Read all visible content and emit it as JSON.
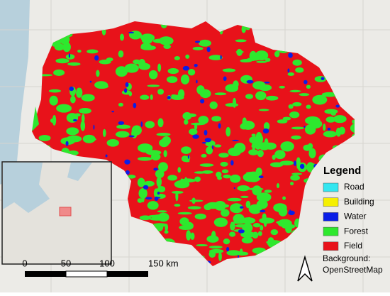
{
  "legend": {
    "title": "Legend",
    "items": [
      {
        "label": "Road",
        "color": "#33e6f0"
      },
      {
        "label": "Building",
        "color": "#f5f000"
      },
      {
        "label": "Water",
        "color": "#0a1ee6"
      },
      {
        "label": "Forest",
        "color": "#2ee82e"
      },
      {
        "label": "Field",
        "color": "#e8121a"
      }
    ]
  },
  "scale_bar": {
    "labels": [
      "0",
      "50",
      "100",
      "150 km"
    ]
  },
  "attribution": {
    "lines": [
      "Background:",
      "OpenStreetMap"
    ]
  }
}
